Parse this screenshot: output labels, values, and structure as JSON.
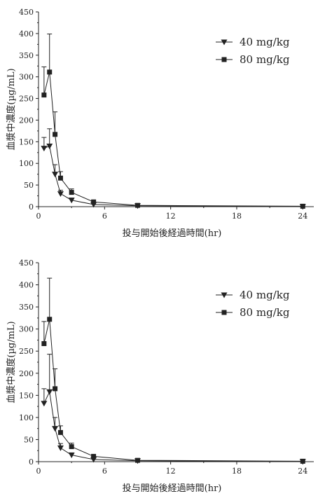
{
  "chart_data": [
    {
      "type": "line",
      "xlabel": "投与開始後経過時間(hr)",
      "ylabel": "血漿中濃度(µg/mL)",
      "xlim": [
        0,
        25
      ],
      "ylim": [
        0,
        450
      ],
      "xticks": [
        0,
        6,
        12,
        18,
        24
      ],
      "yticks": [
        0,
        50,
        100,
        150,
        200,
        250,
        300,
        350,
        400,
        450
      ],
      "x_tick_labels": [
        "0",
        "6",
        "12",
        "18",
        "24"
      ],
      "y_tick_labels": [
        "0",
        "50",
        "100",
        "150",
        "200",
        "250",
        "300",
        "350",
        "400",
        "450"
      ],
      "legend_position": "top-right",
      "grid": false,
      "series": [
        {
          "name": "40 mg/kg",
          "marker": "triangle-down",
          "x": [
            0.5,
            1,
            1.5,
            2,
            3,
            5,
            9,
            24
          ],
          "y": [
            135,
            140,
            75,
            30,
            15,
            5,
            2,
            0.5
          ],
          "error": [
            25,
            40,
            22,
            8,
            5,
            2,
            1,
            0.2
          ]
        },
        {
          "name": "80 mg/kg",
          "marker": "square",
          "x": [
            0.5,
            1,
            1.5,
            2,
            3,
            5,
            9,
            24
          ],
          "y": [
            258,
            311,
            167,
            66,
            33,
            11,
            3,
            1
          ],
          "error": [
            65,
            88,
            52,
            15,
            8,
            3,
            1,
            0.3
          ]
        }
      ]
    },
    {
      "type": "line",
      "xlabel": "投与開始後経過時間(hr)",
      "ylabel": "血漿中濃度(µg/mL)",
      "xlim": [
        0,
        25
      ],
      "ylim": [
        0,
        450
      ],
      "xticks": [
        0,
        6,
        12,
        18,
        24
      ],
      "yticks": [
        0,
        50,
        100,
        150,
        200,
        250,
        300,
        350,
        400,
        450
      ],
      "x_tick_labels": [
        "0",
        "6",
        "12",
        "18",
        "24"
      ],
      "y_tick_labels": [
        "0",
        "50",
        "100",
        "150",
        "200",
        "250",
        "300",
        "350",
        "400",
        "450"
      ],
      "legend_position": "top-right",
      "grid": false,
      "series": [
        {
          "name": "40 mg/kg",
          "marker": "triangle-down",
          "x": [
            0.5,
            1,
            1.5,
            2,
            3,
            5,
            9,
            24
          ],
          "y": [
            132,
            158,
            75,
            31,
            15,
            5,
            2,
            0.5
          ],
          "error": [
            33,
            85,
            25,
            10,
            5,
            2,
            1,
            0.2
          ]
        },
        {
          "name": "80 mg/kg",
          "marker": "square",
          "x": [
            0.5,
            1,
            1.5,
            2,
            3,
            5,
            9,
            24
          ],
          "y": [
            267,
            322,
            165,
            66,
            34,
            12,
            3,
            1
          ],
          "error": [
            50,
            93,
            45,
            15,
            8,
            3,
            1,
            0.3
          ]
        }
      ]
    }
  ]
}
